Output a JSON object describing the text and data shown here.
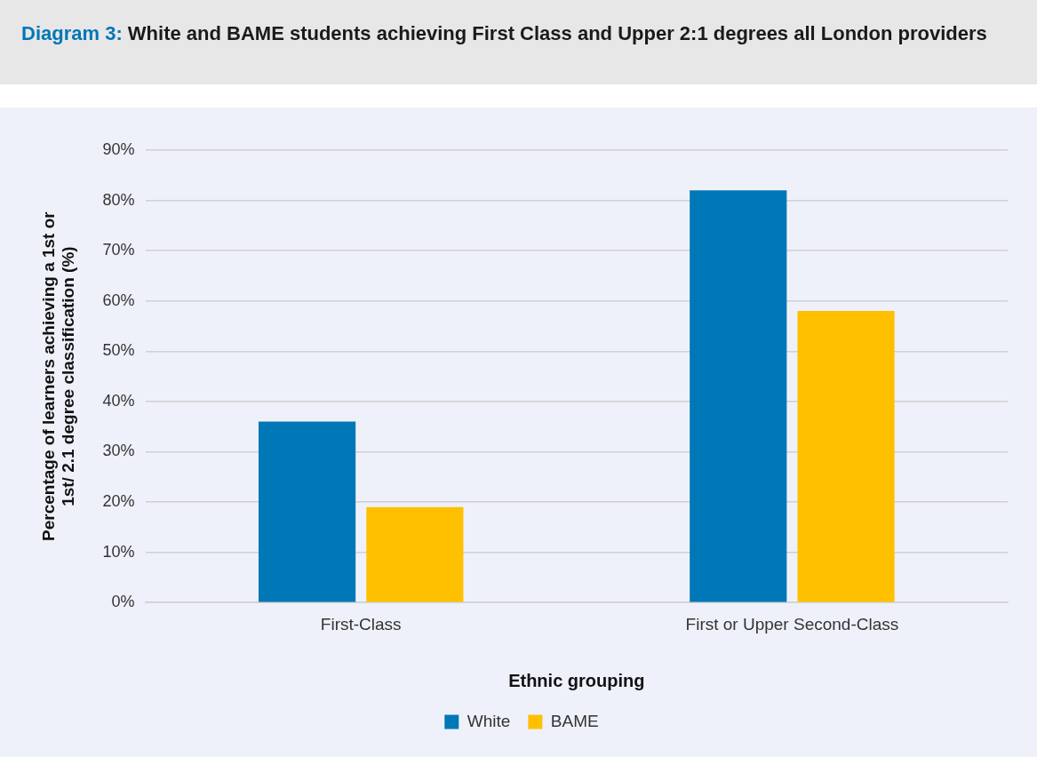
{
  "chart_data": {
    "type": "bar",
    "title": "Diagram 3: White and BAME students achieving First Class and Upper 2:1 degrees all London providers",
    "xlabel": "Ethnic grouping",
    "ylabel": "Percentage of learners achieving a 1st or 1st/ 2.1 degree classification (%)",
    "categories": [
      "First-Class",
      "First or Upper Second-Class"
    ],
    "series": [
      {
        "name": "White",
        "color": "#0077b6",
        "values": [
          36,
          82
        ]
      },
      {
        "name": "BAME",
        "color": "#ffc000",
        "values": [
          19,
          58
        ]
      }
    ],
    "ylim": [
      0,
      90
    ],
    "yticks": [
      {
        "value": 0,
        "label": "0%"
      },
      {
        "value": 10,
        "label": "10%"
      },
      {
        "value": 20,
        "label": "20%"
      },
      {
        "value": 30,
        "label": "30%"
      },
      {
        "value": 40,
        "label": "40%"
      },
      {
        "value": 50,
        "label": "50%"
      },
      {
        "value": 60,
        "label": "60%"
      },
      {
        "value": 70,
        "label": "70%"
      },
      {
        "value": 80,
        "label": "80%"
      },
      {
        "value": 90,
        "label": "90%"
      }
    ],
    "grid": "y",
    "legend": "bottom"
  }
}
